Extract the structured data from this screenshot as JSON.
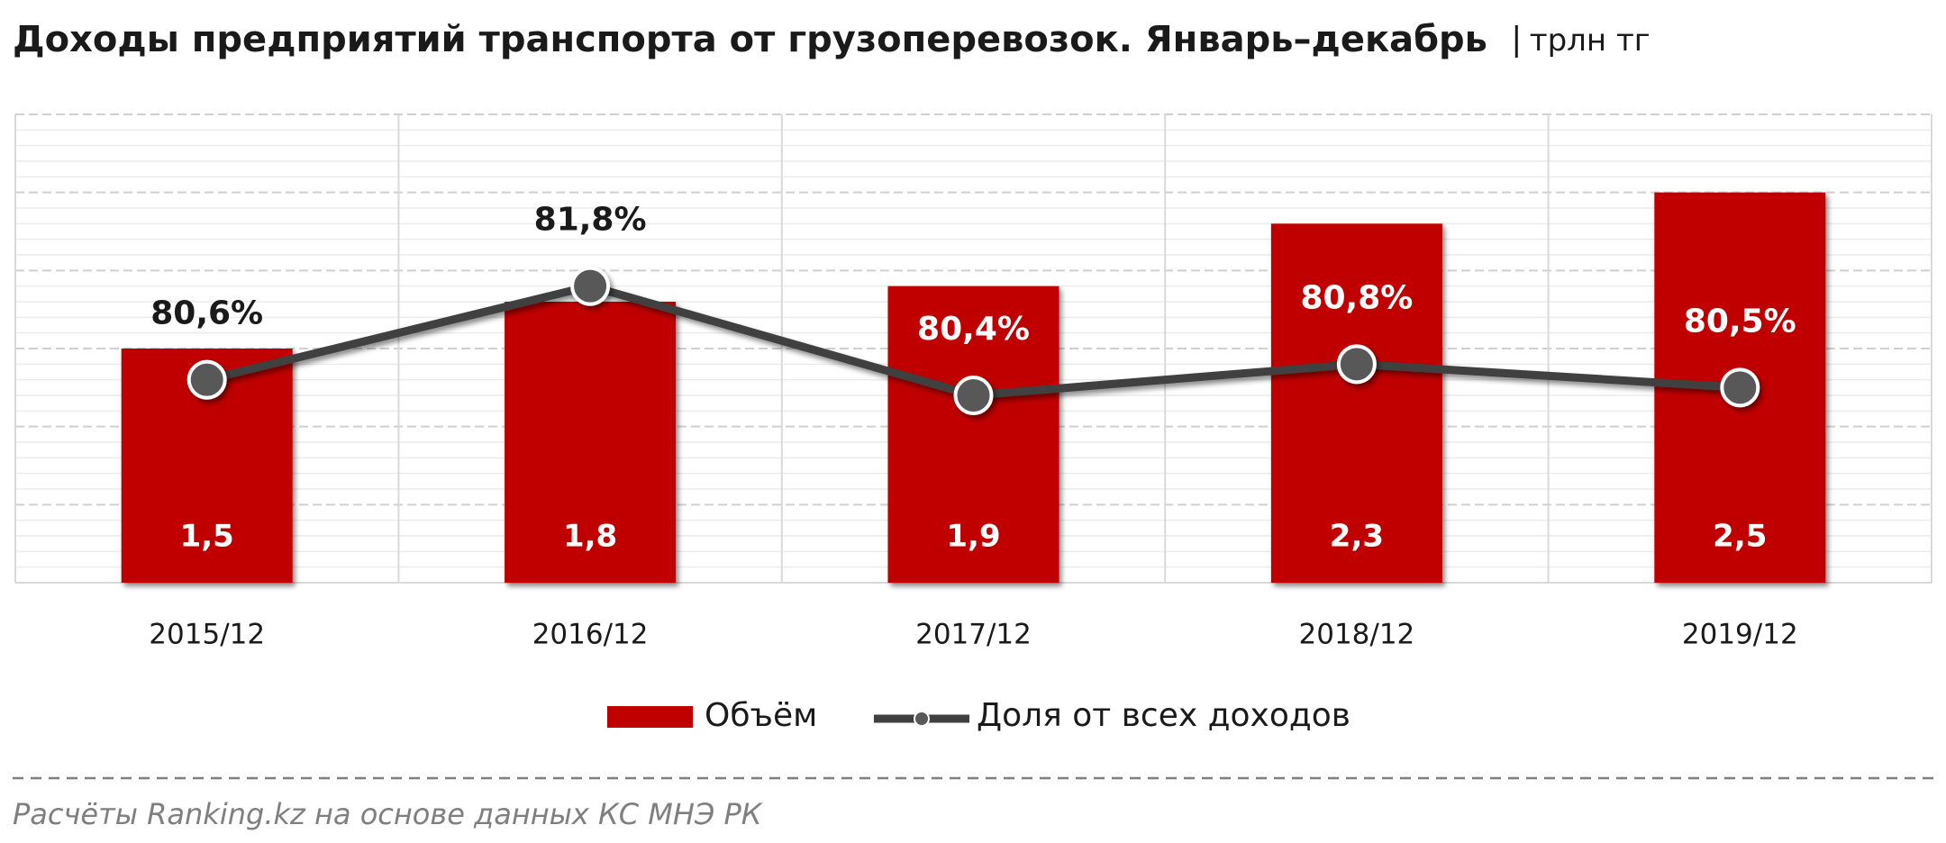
{
  "chart_data": {
    "type": "bar-line",
    "title": "Доходы предприятий транспорта от грузоперевозок. Январь–декабрь",
    "unit": "трлн тг",
    "source": "Расчёты Ranking.kz на основе данных  КС МНЭ РК",
    "categories": [
      "2015/12",
      "2016/12",
      "2017/12",
      "2018/12",
      "2019/12"
    ],
    "ylim": [
      0,
      3
    ],
    "y2lim": [
      78,
      84
    ],
    "grid": true,
    "series": [
      {
        "name": "Объём",
        "type": "bar",
        "color": "#c00000",
        "values": [
          1.5,
          1.8,
          1.9,
          2.3,
          2.5
        ],
        "value_labels": [
          "1,5",
          "1,8",
          "1,9",
          "2,3",
          "2,5"
        ]
      },
      {
        "name": "Доля от всех доходов",
        "type": "line",
        "axis": "y2",
        "color": "#404040",
        "values": [
          80.6,
          81.8,
          80.4,
          80.8,
          80.5
        ],
        "value_labels": [
          "80,6%",
          "81,8%",
          "80,4%",
          "80,8%",
          "80,5%"
        ]
      }
    ]
  }
}
